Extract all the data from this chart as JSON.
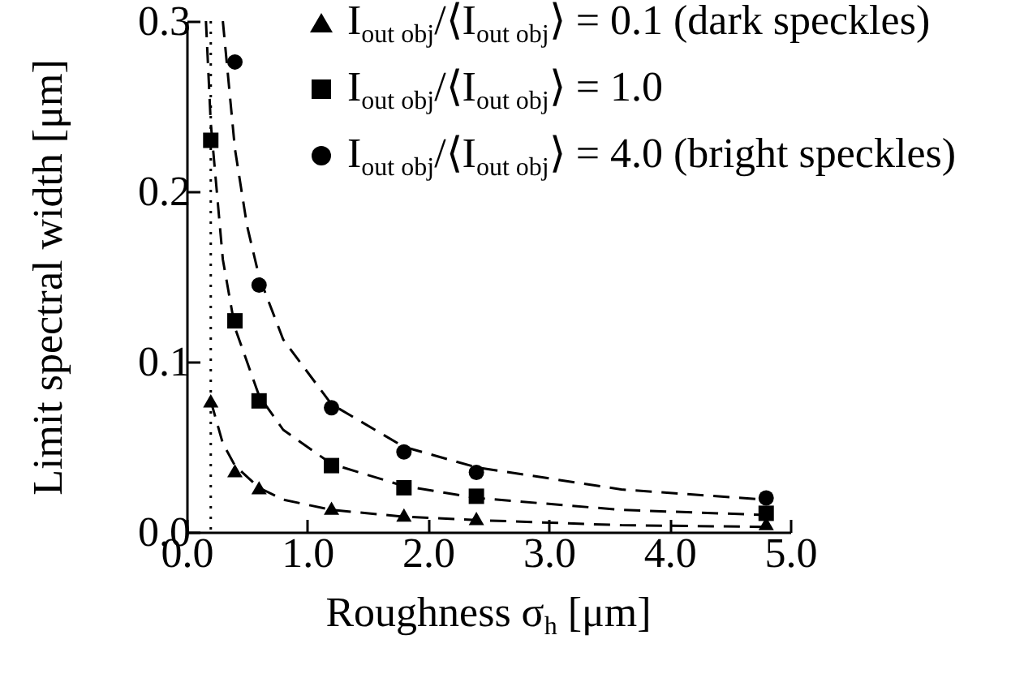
{
  "chart_data": {
    "type": "scatter",
    "xlabel": "Roughness  σ$_{h}$ [μm]",
    "ylabel": "Limit spectral width [μm]",
    "xlim": [
      0,
      5
    ],
    "ylim": [
      0,
      0.3
    ],
    "xticks": [
      {
        "value": 0,
        "label": "0.0"
      },
      {
        "value": 1,
        "label": "1.0"
      },
      {
        "value": 2,
        "label": "2.0"
      },
      {
        "value": 3,
        "label": "3.0"
      },
      {
        "value": 4,
        "label": "4.0"
      },
      {
        "value": 5,
        "label": "5.0"
      }
    ],
    "yticks": [
      {
        "value": 0,
        "label": "0.0"
      },
      {
        "value": 0.1,
        "label": "0.1"
      },
      {
        "value": 0.2,
        "label": "0.2"
      },
      {
        "value": 0.3,
        "label": "0.3"
      }
    ],
    "legend": "top right",
    "grid": false,
    "ref_lines": [
      {
        "axis": "x",
        "value": 0.2,
        "line_style": "dotted",
        "color": "#000000"
      }
    ],
    "series": [
      {
        "name": "I$_{out obj}$/⟨I$_{out obj}$⟩ = 0.1 (dark speckles)",
        "marker": "triangle",
        "color": "#000000",
        "x": [
          0.2,
          0.4,
          0.6,
          1.2,
          1.8,
          2.4,
          4.8
        ],
        "values": [
          0.077,
          0.036,
          0.026,
          0.014,
          0.01,
          0.008,
          0.005
        ]
      },
      {
        "name": "I$_{out obj}$/⟨I$_{out obj}$⟩ = 1.0",
        "marker": "square",
        "color": "#000000",
        "x": [
          0.2,
          0.4,
          0.6,
          1.2,
          1.8,
          2.4,
          4.8
        ],
        "values": [
          0.23,
          0.124,
          0.077,
          0.039,
          0.026,
          0.021,
          0.011
        ]
      },
      {
        "name": "I$_{out obj}$/⟨I$_{out obj}$⟩ = 4.0 (bright speckles)",
        "marker": "circle",
        "color": "#000000",
        "x": [
          0.4,
          0.6,
          1.2,
          1.8,
          2.4,
          4.8
        ],
        "values": [
          0.276,
          0.145,
          0.073,
          0.047,
          0.035,
          0.02
        ]
      },
      {
        "type": "line",
        "line_style": "dashed",
        "marker": "none",
        "color": "#000000",
        "x": [
          0.2,
          0.3,
          0.4,
          0.6,
          0.8,
          1.2,
          1.8,
          2.4,
          3.6,
          4.8
        ],
        "values": [
          0.077,
          0.052,
          0.039,
          0.026,
          0.019,
          0.013,
          0.009,
          0.007,
          0.004,
          0.003
        ]
      },
      {
        "type": "line",
        "line_style": "dashed",
        "marker": "none",
        "color": "#000000",
        "x": [
          0.16,
          0.2,
          0.3,
          0.4,
          0.6,
          0.8,
          1.2,
          1.8,
          2.4,
          3.6,
          4.8
        ],
        "values": [
          0.3,
          0.24,
          0.16,
          0.12,
          0.08,
          0.06,
          0.04,
          0.027,
          0.02,
          0.013,
          0.01
        ]
      },
      {
        "type": "line",
        "line_style": "dashed",
        "marker": "none",
        "color": "#000000",
        "x": [
          0.3,
          0.4,
          0.5,
          0.6,
          0.8,
          1.2,
          1.8,
          2.4,
          3.6,
          4.8
        ],
        "values": [
          0.3,
          0.225,
          0.18,
          0.15,
          0.113,
          0.075,
          0.05,
          0.038,
          0.025,
          0.019
        ]
      }
    ]
  }
}
